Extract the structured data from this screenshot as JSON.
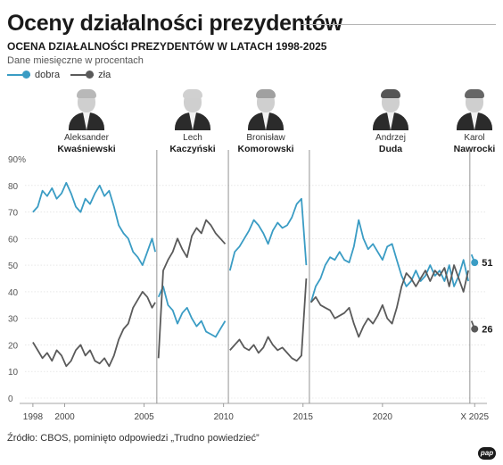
{
  "title": "Oceny działalności prezydentów",
  "subtitle": "OCENA DZIAŁALNOŚCI PREZYDENTÓW W LATACH 1998-2025",
  "note": "Dane miesięczne w procentach",
  "source": "Źródło: CBOS, pominięto odpowiedzi „Trudno powiedzieć”",
  "logo": "pap",
  "colors": {
    "good": "#3a9cc4",
    "bad": "#5a5a5a",
    "axis": "#7a7a7a",
    "grid": "#d9d9d9"
  },
  "presidents": [
    {
      "first": "Aleksander",
      "last": "Kwaśniewski",
      "icon": "portrait-kwasniewski"
    },
    {
      "first": "Lech",
      "last": "Kaczyński",
      "icon": "portrait-kaczynski"
    },
    {
      "first": "Bronisław",
      "last": "Komorowski",
      "icon": "portrait-komorowski"
    },
    {
      "first": "Andrzej",
      "last": "Duda",
      "icon": "portrait-duda"
    },
    {
      "first": "Karol",
      "last": "Nawrocki",
      "icon": "portrait-nawrocki"
    }
  ],
  "chart_data": {
    "type": "line",
    "title": "OCENA DZIAŁALNOŚCI PREZYDENTÓW W LATACH 1998-2025",
    "ylabel": "Dane miesięczne w procentach",
    "xlim": [
      1997.5,
      2025.9
    ],
    "ylim": [
      0,
      90
    ],
    "yticks": [
      0,
      10,
      20,
      30,
      40,
      50,
      60,
      70,
      80
    ],
    "ytick_labels": [
      "0",
      "10",
      "20",
      "30",
      "40",
      "50",
      "60",
      "70",
      "80"
    ],
    "ytop_label": "90%",
    "xticks": [
      1998,
      2000,
      2005,
      2010,
      2015,
      2020,
      2025.8
    ],
    "xtick_labels": [
      "1998",
      "2000",
      "2005",
      "2010",
      "2015",
      "2020",
      "X 2025"
    ],
    "term_boundaries": [
      2005.8,
      2010.3,
      2015.4,
      2025.5
    ],
    "legend": [
      "dobra",
      "zła"
    ],
    "legend_placement": "top-left",
    "series": [
      {
        "name": "dobra",
        "color": "#3a9cc4",
        "segments": [
          {
            "x": [
              1998.0,
              1998.3,
              1998.6,
              1998.9,
              1999.2,
              1999.5,
              1999.8,
              2000.1,
              2000.4,
              2000.7,
              2001.0,
              2001.3,
              2001.6,
              2001.9,
              2002.2,
              2002.5,
              2002.8,
              2003.1,
              2003.4,
              2003.7,
              2004.0,
              2004.3,
              2004.6,
              2004.9,
              2005.2,
              2005.5,
              2005.7
            ],
            "y": [
              70,
              72,
              78,
              76,
              79,
              75,
              77,
              81,
              77,
              72,
              70,
              75,
              73,
              77,
              80,
              76,
              78,
              72,
              65,
              62,
              60,
              55,
              53,
              50,
              55,
              60,
              55
            ]
          },
          {
            "x": [
              2005.9,
              2006.2,
              2006.5,
              2006.8,
              2007.1,
              2007.4,
              2007.7,
              2008.0,
              2008.3,
              2008.6,
              2008.9,
              2009.2,
              2009.5,
              2009.8,
              2010.1
            ],
            "y": [
              38,
              42,
              35,
              33,
              28,
              32,
              34,
              30,
              27,
              29,
              25,
              24,
              23,
              26,
              29
            ]
          },
          {
            "x": [
              2010.4,
              2010.7,
              2011.0,
              2011.3,
              2011.6,
              2011.9,
              2012.2,
              2012.5,
              2012.8,
              2013.1,
              2013.4,
              2013.7,
              2014.0,
              2014.3,
              2014.6,
              2014.9,
              2015.2
            ],
            "y": [
              48,
              55,
              57,
              60,
              63,
              67,
              65,
              62,
              58,
              63,
              66,
              64,
              65,
              68,
              73,
              75,
              50
            ]
          },
          {
            "x": [
              2015.5,
              2015.8,
              2016.1,
              2016.4,
              2016.7,
              2017.0,
              2017.3,
              2017.6,
              2017.9,
              2018.2,
              2018.5,
              2018.8,
              2019.1,
              2019.4,
              2019.7,
              2020.0,
              2020.3,
              2020.6,
              2020.9,
              2021.2,
              2021.5,
              2021.8,
              2022.1,
              2022.4,
              2022.7,
              2023.0,
              2023.3,
              2023.6,
              2023.9,
              2024.2,
              2024.5,
              2024.8,
              2025.1,
              2025.4
            ],
            "y": [
              36,
              42,
              45,
              50,
              53,
              52,
              55,
              52,
              51,
              57,
              67,
              60,
              56,
              58,
              55,
              52,
              57,
              58,
              52,
              46,
              42,
              44,
              48,
              44,
              46,
              50,
              46,
              48,
              44,
              50,
              42,
              46,
              52,
              44
            ]
          },
          {
            "x": [
              2025.6,
              2025.8
            ],
            "y": [
              54,
              51
            ]
          }
        ]
      },
      {
        "name": "zła",
        "color": "#5a5a5a",
        "segments": [
          {
            "x": [
              1998.0,
              1998.3,
              1998.6,
              1998.9,
              1999.2,
              1999.5,
              1999.8,
              2000.1,
              2000.4,
              2000.7,
              2001.0,
              2001.3,
              2001.6,
              2001.9,
              2002.2,
              2002.5,
              2002.8,
              2003.1,
              2003.4,
              2003.7,
              2004.0,
              2004.3,
              2004.6,
              2004.9,
              2005.2,
              2005.5,
              2005.7
            ],
            "y": [
              21,
              18,
              15,
              17,
              14,
              18,
              16,
              12,
              14,
              18,
              20,
              16,
              18,
              14,
              13,
              15,
              12,
              16,
              22,
              26,
              28,
              34,
              37,
              40,
              38,
              34,
              36
            ]
          },
          {
            "x": [
              2005.9,
              2006.2,
              2006.5,
              2006.8,
              2007.1,
              2007.4,
              2007.7,
              2008.0,
              2008.3,
              2008.6,
              2008.9,
              2009.2,
              2009.5,
              2009.8,
              2010.1
            ],
            "y": [
              15,
              48,
              52,
              55,
              60,
              56,
              53,
              61,
              64,
              62,
              67,
              65,
              62,
              60,
              58
            ]
          },
          {
            "x": [
              2010.4,
              2010.7,
              2011.0,
              2011.3,
              2011.6,
              2011.9,
              2012.2,
              2012.5,
              2012.8,
              2013.1,
              2013.4,
              2013.7,
              2014.0,
              2014.3,
              2014.6,
              2014.9,
              2015.2
            ],
            "y": [
              18,
              20,
              22,
              19,
              18,
              20,
              17,
              19,
              23,
              20,
              18,
              19,
              17,
              15,
              14,
              16,
              45
            ]
          },
          {
            "x": [
              2015.5,
              2015.8,
              2016.1,
              2016.4,
              2016.7,
              2017.0,
              2017.3,
              2017.6,
              2017.9,
              2018.2,
              2018.5,
              2018.8,
              2019.1,
              2019.4,
              2019.7,
              2020.0,
              2020.3,
              2020.6,
              2020.9,
              2021.2,
              2021.5,
              2021.8,
              2022.1,
              2022.4,
              2022.7,
              2023.0,
              2023.3,
              2023.6,
              2023.9,
              2024.2,
              2024.5,
              2024.8,
              2025.1,
              2025.4
            ],
            "y": [
              36,
              38,
              35,
              34,
              33,
              30,
              31,
              32,
              34,
              28,
              23,
              27,
              30,
              28,
              31,
              35,
              30,
              28,
              34,
              42,
              47,
              45,
              42,
              45,
              48,
              44,
              48,
              46,
              49,
              42,
              50,
              45,
              40,
              48
            ]
          },
          {
            "x": [
              2025.6,
              2025.8
            ],
            "y": [
              29,
              26
            ]
          }
        ]
      }
    ],
    "end_labels": [
      {
        "series": "dobra",
        "x": 2025.8,
        "y": 51,
        "text": "51"
      },
      {
        "series": "zła",
        "x": 2025.8,
        "y": 26,
        "text": "26"
      }
    ]
  }
}
